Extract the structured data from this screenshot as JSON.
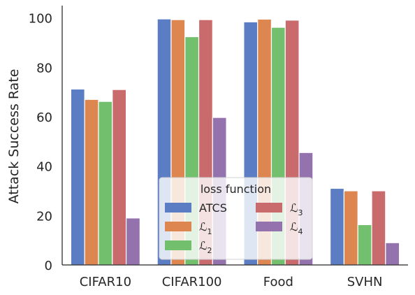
{
  "chart_data": {
    "type": "bar",
    "title": "",
    "xlabel": "",
    "ylabel": "Attack Success Rate",
    "ylim": [
      0,
      105
    ],
    "yticks": [
      "0",
      "20",
      "40",
      "60",
      "80",
      "100"
    ],
    "grid": false,
    "categories": [
      "CIFAR10",
      "CIFAR100",
      "Food",
      "SVHN"
    ],
    "series": [
      {
        "name": "ATCS",
        "color": "#5a7dc3",
        "values": [
          71.2,
          99.6,
          98.4,
          31.0
        ]
      },
      {
        "name": "L1",
        "color": "#dd8650",
        "values": [
          67.0,
          99.3,
          99.5,
          30.0
        ]
      },
      {
        "name": "L2",
        "color": "#72bf6e",
        "values": [
          66.2,
          92.4,
          96.2,
          16.3
        ]
      },
      {
        "name": "L3",
        "color": "#c96a6c",
        "values": [
          71.0,
          99.3,
          99.1,
          30.0
        ]
      },
      {
        "name": "L4",
        "color": "#9372ae",
        "values": [
          19.0,
          59.7,
          45.5,
          9.0
        ]
      }
    ],
    "legend": {
      "title": "loss function",
      "placement": "lower-center",
      "labels": [
        {
          "base": "ATCS",
          "sub": ""
        },
        {
          "base": "ℒ",
          "sub": "1"
        },
        {
          "base": "ℒ",
          "sub": "2"
        },
        {
          "base": "ℒ",
          "sub": "3"
        },
        {
          "base": "ℒ",
          "sub": "4"
        }
      ]
    }
  }
}
